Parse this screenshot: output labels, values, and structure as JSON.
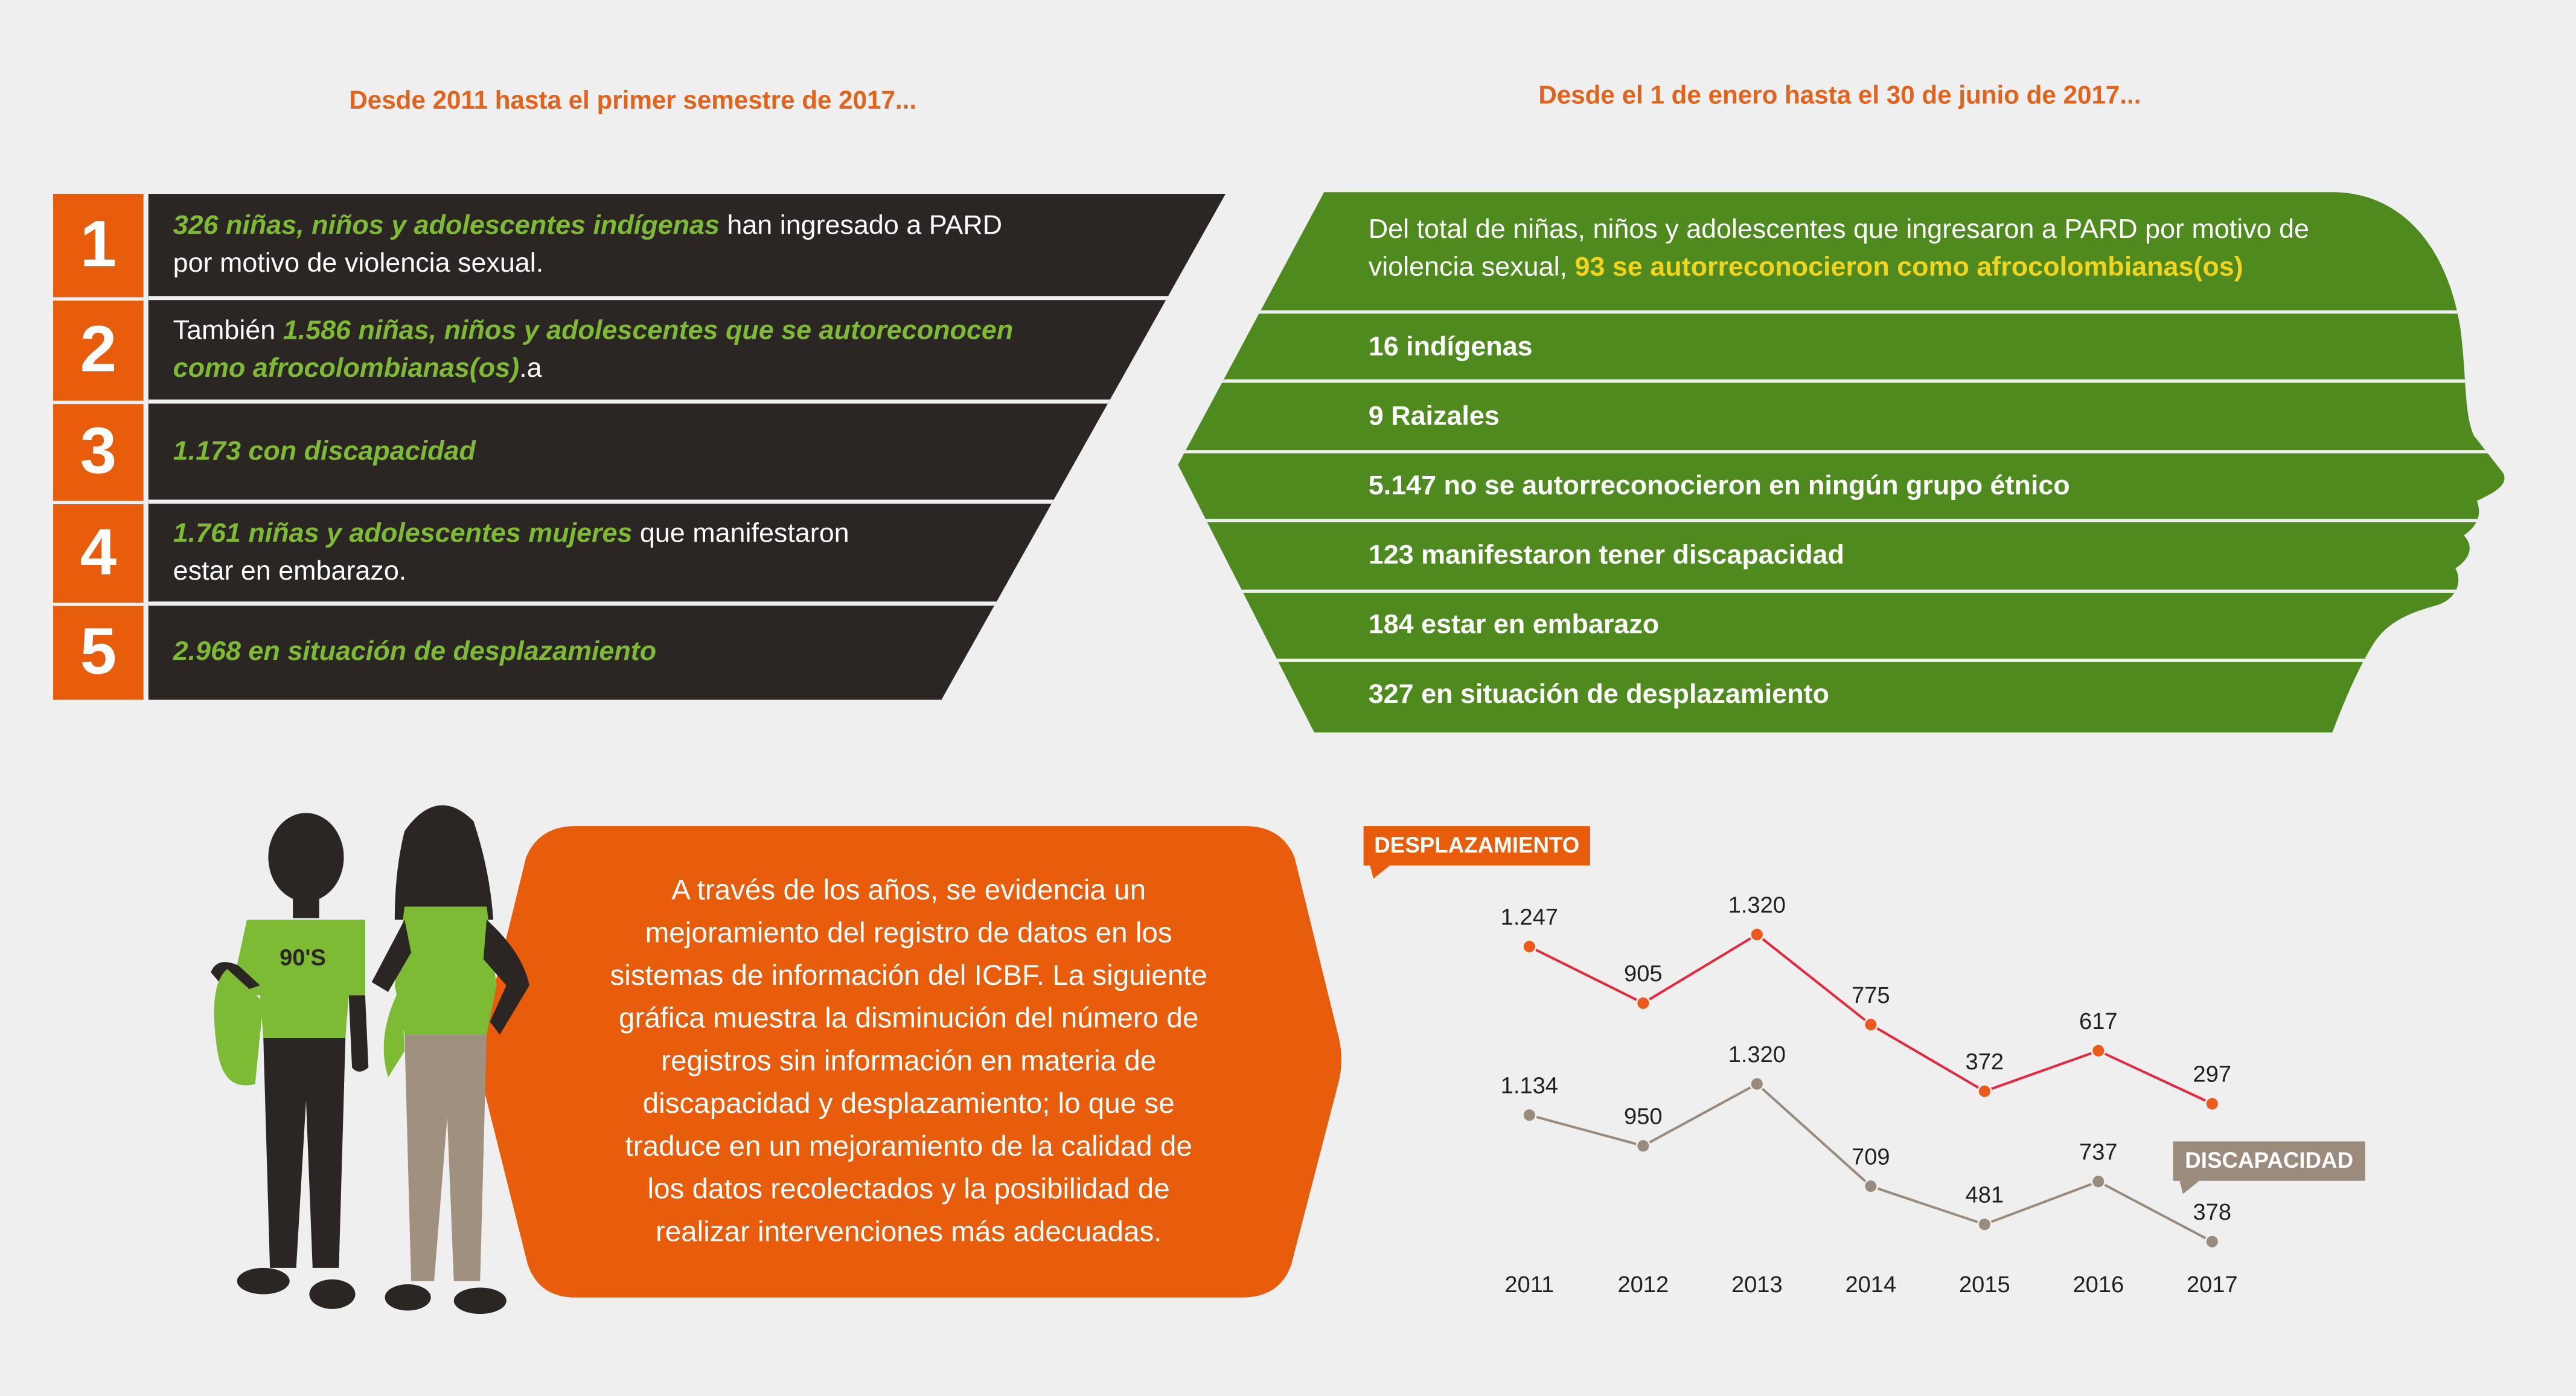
{
  "left_heading": "Desde 2011 hasta el primer semestre de 2017...",
  "right_heading": "Desde el 1 de enero hasta el 30 de junio de 2017...",
  "list": [
    {
      "number": 1,
      "lines": [
        [
          {
            "text": "326 niñas, niños y adolescentes indígenas",
            "em": true
          },
          {
            "text": " han ingresado a PARD"
          }
        ],
        [
          {
            "text": "por motivo de violencia sexual."
          }
        ]
      ]
    },
    {
      "number": 2,
      "lines": [
        [
          {
            "text": "También "
          },
          {
            "text": "1.586 niñas, niños y adolescentes que se autoreconocen",
            "em": true
          }
        ],
        [
          {
            "text": "como afrocolombianas(os)",
            "em": true
          },
          {
            "text": ".a"
          }
        ]
      ]
    },
    {
      "number": 3,
      "lines": [
        [
          {
            "text": "1.173 con discapacidad",
            "em": true
          }
        ]
      ]
    },
    {
      "number": 4,
      "lines": [
        [
          {
            "text": "1.761 niñas y adolescentes mujeres",
            "em": true
          },
          {
            "text": " que manifestaron"
          }
        ],
        [
          {
            "text": "estar en embarazo."
          }
        ]
      ]
    },
    {
      "number": 5,
      "lines": [
        [
          {
            "text": "2.968 en situación de desplazamiento",
            "em": true
          }
        ]
      ]
    }
  ],
  "head": {
    "intro": [
      [
        {
          "text": "Del total de niñas, niños y adolescentes que ingresaron a PARD por motivo de"
        }
      ],
      [
        {
          "text": "violencia sexual, "
        },
        {
          "text": "93 se autorreconocieron como afrocolombianas(os)",
          "em": true
        }
      ]
    ],
    "rows": [
      "16 indígenas",
      "9 Raizales",
      "5.147 no se autorreconocieron en ningún grupo étnico",
      "123 manifestaron tener discapacidad",
      "184 estar en embarazo",
      "327 en situación de desplazamiento"
    ]
  },
  "figures": {
    "shirt_text": "90'S"
  },
  "callout": [
    "A través de los años, se evidencia un",
    "mejoramiento del registro de datos en los",
    "sistemas de información del ICBF. La siguiente",
    "gráfica muestra la disminución del número de",
    "registros sin información en materia de",
    "discapacidad y desplazamiento; lo que se",
    "traduce en un mejoramiento de la calidad de",
    "los datos recolectados y la posibilidad de",
    "realizar intervenciones más adecuadas."
  ],
  "chart_data": {
    "type": "line",
    "categories": [
      "2011",
      "2012",
      "2013",
      "2014",
      "2015",
      "2016",
      "2017"
    ],
    "series": [
      {
        "name": "DESPLAZAMIENTO",
        "color": "#e3283f",
        "marker_color": "#eb5a1a",
        "values": [
          1247,
          905,
          1320,
          775,
          372,
          617,
          297
        ],
        "value_labels": [
          "1.247",
          "905",
          "1.320",
          "775",
          "372",
          "617",
          "297"
        ]
      },
      {
        "name": "DISCAPACIDAD",
        "color": "#9b8b7c",
        "marker_color": "#9b8b7c",
        "values": [
          1134,
          950,
          1320,
          709,
          481,
          737,
          378
        ],
        "value_labels": [
          "1.134",
          "950",
          "1.320",
          "709",
          "481",
          "737",
          "378"
        ]
      }
    ]
  }
}
